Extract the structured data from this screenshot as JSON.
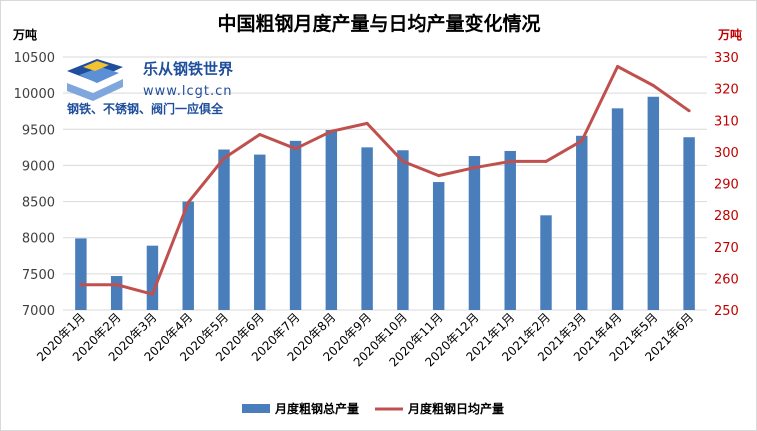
{
  "chart_data": {
    "type": "bar",
    "title": "中国粗钢月度产量与日均产量变化情况",
    "y_left_unit": "万吨",
    "y_right_unit": "万吨",
    "y_left_range": [
      7000,
      10500
    ],
    "y_left_ticks": [
      "7000",
      "7500",
      "8000",
      "8500",
      "9000",
      "9500",
      "10000",
      "10500"
    ],
    "y_right_range": [
      250,
      330
    ],
    "y_right_ticks": [
      "250",
      "260",
      "270",
      "280",
      "290",
      "300",
      "310",
      "320",
      "330"
    ],
    "categories": [
      "2020年1月",
      "2020年2月",
      "2020年3月",
      "2020年4月",
      "2020年5月",
      "2020年6月",
      "2020年7月",
      "2020年8月",
      "2020年9月",
      "2020年10月",
      "2020年11月",
      "2020年12月",
      "2021年1月",
      "2021年2月",
      "2021年3月",
      "2021年4月",
      "2021年5月",
      "2021年6月"
    ],
    "series": [
      {
        "name": "月度粗钢总产量",
        "type": "bar",
        "axis": "left",
        "color": "#4a7ebb",
        "values": [
          7990,
          7470,
          7890,
          8500,
          9220,
          9150,
          9340,
          9490,
          9250,
          9210,
          8770,
          9130,
          9200,
          8310,
          9410,
          9790,
          9950,
          9390
        ]
      },
      {
        "name": "月度粗钢日均产量",
        "type": "line",
        "axis": "right",
        "color": "#c0504d",
        "values": [
          258,
          258,
          255,
          284,
          298,
          305.5,
          301,
          306.5,
          309,
          297,
          292.5,
          295,
          297,
          297,
          303.5,
          327,
          321,
          313
        ]
      }
    ],
    "legend_position": "bottom",
    "grid": true
  },
  "watermark": {
    "name": "乐从钢铁世界",
    "url": "www.lcgt.cn",
    "slogan": "钢铁、不锈钢、阀门一应俱全"
  }
}
